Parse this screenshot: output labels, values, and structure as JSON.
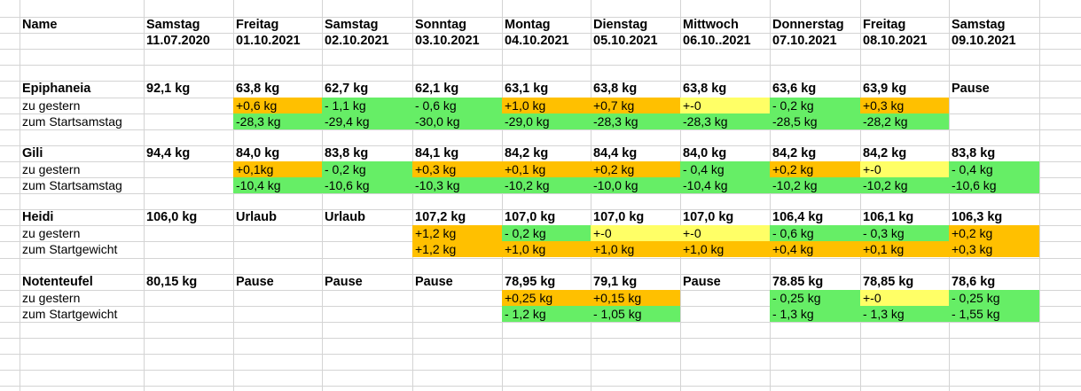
{
  "colors": {
    "orange": "#FFC000",
    "green": "#66EE66",
    "yellow": "#FFFF66",
    "grid": "#D4D4D4"
  },
  "header": {
    "name_label": "Name",
    "columns": [
      {
        "day": "Samstag",
        "date": "11.07.2020"
      },
      {
        "day": "Freitag",
        "date": "01.10.2021"
      },
      {
        "day": "Samstag",
        "date": "02.10.2021"
      },
      {
        "day": "Sonntag",
        "date": "03.10.2021"
      },
      {
        "day": "Montag",
        "date": "04.10.2021"
      },
      {
        "day": "Dienstag",
        "date": "05.10.2021"
      },
      {
        "day": "Mittwoch",
        "date": "06.10..2021"
      },
      {
        "day": "Donnerstag",
        "date": "07.10.2021"
      },
      {
        "day": "Freitag",
        "date": "08.10.2021"
      },
      {
        "day": "Samstag",
        "date": "09.10.2021"
      }
    ]
  },
  "people": [
    {
      "name": "Epiphaneia",
      "weights": [
        "92,1 kg",
        "63,8 kg",
        "62,7 kg",
        "62,1 kg",
        "63,1 kg",
        "63,8 kg",
        "63,8 kg",
        "63,6 kg",
        "63,9 kg",
        "Pause"
      ],
      "row2_label": "zu gestern",
      "row2": [
        {
          "v": "",
          "c": ""
        },
        {
          "v": "+0,6 kg",
          "c": "orange"
        },
        {
          "v": "- 1,1 kg",
          "c": "green"
        },
        {
          "v": "- 0,6 kg",
          "c": "green"
        },
        {
          "v": "+1,0 kg",
          "c": "orange"
        },
        {
          "v": "+0,7 kg",
          "c": "orange"
        },
        {
          "v": "+-0",
          "c": "yellow"
        },
        {
          "v": "- 0,2 kg",
          "c": "green"
        },
        {
          "v": "+0,3 kg",
          "c": "orange"
        },
        {
          "v": "",
          "c": ""
        }
      ],
      "row3_label": "zum Startsamstag",
      "row3": [
        {
          "v": "",
          "c": ""
        },
        {
          "v": "-28,3 kg",
          "c": "green"
        },
        {
          "v": "-29,4 kg",
          "c": "green"
        },
        {
          "v": "-30,0 kg",
          "c": "green"
        },
        {
          "v": "-29,0 kg",
          "c": "green"
        },
        {
          "v": "-28,3 kg",
          "c": "green"
        },
        {
          "v": "-28,3 kg",
          "c": "green"
        },
        {
          "v": "-28,5 kg",
          "c": "green"
        },
        {
          "v": "-28,2 kg",
          "c": "green"
        },
        {
          "v": "",
          "c": ""
        }
      ]
    },
    {
      "name": "Gili",
      "weights": [
        "94,4 kg",
        "84,0 kg",
        "83,8 kg",
        "84,1 kg",
        "84,2 kg",
        "84,4 kg",
        "84,0 kg",
        "84,2 kg",
        "84,2 kg",
        "83,8 kg"
      ],
      "row2_label": "zu gestern",
      "row2": [
        {
          "v": "",
          "c": ""
        },
        {
          "v": "+0,1kg",
          "c": "orange"
        },
        {
          "v": "- 0,2 kg",
          "c": "green"
        },
        {
          "v": "+0,3 kg",
          "c": "orange"
        },
        {
          "v": "+0,1 kg",
          "c": "orange"
        },
        {
          "v": "+0,2 kg",
          "c": "orange"
        },
        {
          "v": "- 0,4 kg",
          "c": "green"
        },
        {
          "v": "+0,2 kg",
          "c": "orange"
        },
        {
          "v": "+-0",
          "c": "yellow"
        },
        {
          "v": "- 0,4 kg",
          "c": "green"
        }
      ],
      "row3_label": "zum Startsamstag",
      "row3": [
        {
          "v": "",
          "c": ""
        },
        {
          "v": "-10,4 kg",
          "c": "green"
        },
        {
          "v": "-10,6 kg",
          "c": "green"
        },
        {
          "v": "-10,3 kg",
          "c": "green"
        },
        {
          "v": "-10,2 kg",
          "c": "green"
        },
        {
          "v": "-10,0 kg",
          "c": "green"
        },
        {
          "v": "-10,4 kg",
          "c": "green"
        },
        {
          "v": "-10,2 kg",
          "c": "green"
        },
        {
          "v": "-10,2 kg",
          "c": "green"
        },
        {
          "v": "-10,6 kg",
          "c": "green"
        }
      ]
    },
    {
      "name": "Heidi",
      "weights": [
        "106,0 kg",
        "Urlaub",
        "Urlaub",
        "107,2 kg",
        "107,0 kg",
        "107,0 kg",
        "107,0 kg",
        "106,4 kg",
        "106,1 kg",
        "106,3 kg"
      ],
      "row2_label": "zu gestern",
      "row2": [
        {
          "v": "",
          "c": ""
        },
        {
          "v": "",
          "c": ""
        },
        {
          "v": "",
          "c": ""
        },
        {
          "v": "+1,2 kg",
          "c": "orange"
        },
        {
          "v": "- 0,2 kg",
          "c": "green"
        },
        {
          "v": "+-0",
          "c": "yellow"
        },
        {
          "v": "+-0",
          "c": "yellow"
        },
        {
          "v": "- 0,6 kg",
          "c": "green"
        },
        {
          "v": "- 0,3 kg",
          "c": "green"
        },
        {
          "v": "+0,2 kg",
          "c": "orange"
        }
      ],
      "row3_label": "zum Startgewicht",
      "row3": [
        {
          "v": "",
          "c": ""
        },
        {
          "v": "",
          "c": ""
        },
        {
          "v": "",
          "c": ""
        },
        {
          "v": "+1,2 kg",
          "c": "orange"
        },
        {
          "v": "+1,0 kg",
          "c": "orange"
        },
        {
          "v": "+1,0 kg",
          "c": "orange"
        },
        {
          "v": "+1,0 kg",
          "c": "orange"
        },
        {
          "v": "+0,4 kg",
          "c": "orange"
        },
        {
          "v": "+0,1 kg",
          "c": "orange"
        },
        {
          "v": "+0,3 kg",
          "c": "orange"
        }
      ]
    },
    {
      "name": "Notenteufel",
      "weights": [
        "80,15 kg",
        "Pause",
        "Pause",
        "Pause",
        "78,95 kg",
        "79,1 kg",
        "Pause",
        "78.85 kg",
        "78,85 kg",
        "78,6 kg"
      ],
      "row2_label": "zu gestern",
      "row2": [
        {
          "v": "",
          "c": ""
        },
        {
          "v": "",
          "c": ""
        },
        {
          "v": "",
          "c": ""
        },
        {
          "v": "",
          "c": ""
        },
        {
          "v": "+0,25 kg",
          "c": "orange"
        },
        {
          "v": "+0,15 kg",
          "c": "orange"
        },
        {
          "v": "",
          "c": ""
        },
        {
          "v": "- 0,25 kg",
          "c": "green"
        },
        {
          "v": "+-0",
          "c": "yellow"
        },
        {
          "v": "- 0,25 kg",
          "c": "green"
        }
      ],
      "row3_label": "zum Startgewicht",
      "row3": [
        {
          "v": "",
          "c": ""
        },
        {
          "v": "",
          "c": ""
        },
        {
          "v": "",
          "c": ""
        },
        {
          "v": "",
          "c": ""
        },
        {
          "v": "- 1,2 kg",
          "c": "green"
        },
        {
          "v": "- 1,05 kg",
          "c": "green"
        },
        {
          "v": "",
          "c": ""
        },
        {
          "v": "- 1,3 kg",
          "c": "green"
        },
        {
          "v": "- 1,3 kg",
          "c": "green"
        },
        {
          "v": "- 1,55 kg",
          "c": "green"
        }
      ]
    }
  ]
}
